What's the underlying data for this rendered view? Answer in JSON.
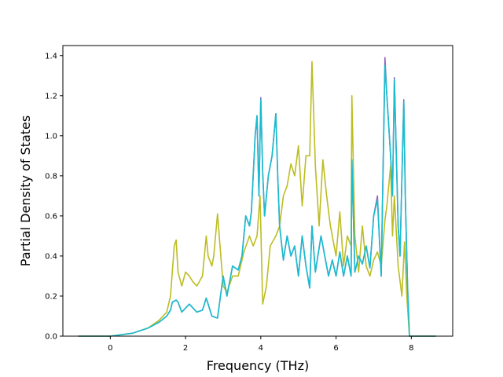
{
  "chart_data": {
    "type": "line",
    "title": "",
    "xlabel": "Frequency (THz)",
    "ylabel": "Partial Density of States",
    "xlim": [
      -1.26,
      9.1
    ],
    "ylim": [
      0,
      1.45
    ],
    "xticks": [
      0,
      2,
      4,
      6,
      8
    ],
    "yticks": [
      0.0,
      0.2,
      0.4,
      0.6,
      0.8,
      1.0,
      1.2,
      1.4
    ],
    "xtick_labels": [
      "0",
      "2",
      "4",
      "6",
      "8"
    ],
    "ytick_labels": [
      "0.0",
      "0.2",
      "0.4",
      "0.6",
      "0.8",
      "1.0",
      "1.2",
      "1.4"
    ],
    "grid": false,
    "legend": "none",
    "series": [
      {
        "color": "#9467bd",
        "x": [
          -0.85,
          0.0,
          0.6,
          1.0,
          1.3,
          1.5,
          1.6,
          1.65,
          1.75,
          1.8,
          1.9,
          2.0,
          2.1,
          2.2,
          2.3,
          2.45,
          2.55,
          2.6,
          2.7,
          2.85,
          3.0,
          3.1,
          3.25,
          3.4,
          3.5,
          3.6,
          3.7,
          3.75,
          3.85,
          3.9,
          3.95,
          4.0,
          4.05,
          4.1,
          4.2,
          4.3,
          4.4,
          4.45,
          4.5,
          4.6,
          4.7,
          4.8,
          4.9,
          5.0,
          5.1,
          5.2,
          5.3,
          5.36,
          5.45,
          5.6,
          5.7,
          5.8,
          5.9,
          6.0,
          6.1,
          6.2,
          6.3,
          6.4,
          6.42,
          6.5,
          6.6,
          6.7,
          6.8,
          6.9,
          7.0,
          7.1,
          7.2,
          7.3,
          7.35,
          7.45,
          7.5,
          7.55,
          7.65,
          7.7,
          7.8,
          7.84,
          7.9,
          7.95,
          8.0,
          8.65
        ],
        "y": [
          0,
          0.0,
          0.015,
          0.04,
          0.07,
          0.1,
          0.13,
          0.17,
          0.18,
          0.17,
          0.12,
          0.14,
          0.16,
          0.14,
          0.12,
          0.13,
          0.19,
          0.16,
          0.1,
          0.09,
          0.3,
          0.2,
          0.35,
          0.33,
          0.4,
          0.6,
          0.55,
          0.62,
          1.0,
          1.1,
          0.7,
          1.19,
          0.82,
          0.6,
          0.8,
          0.9,
          1.11,
          0.8,
          0.55,
          0.38,
          0.5,
          0.4,
          0.45,
          0.3,
          0.5,
          0.35,
          0.24,
          0.55,
          0.32,
          0.5,
          0.4,
          0.3,
          0.38,
          0.3,
          0.42,
          0.3,
          0.4,
          0.3,
          0.88,
          0.32,
          0.4,
          0.36,
          0.45,
          0.34,
          0.6,
          0.7,
          0.3,
          1.39,
          1.2,
          0.9,
          0.7,
          1.29,
          0.55,
          0.4,
          1.18,
          0.7,
          0.25,
          0.0,
          0.0,
          0.0
        ]
      },
      {
        "color": "#bcbd22",
        "x": [
          -0.85,
          0.0,
          0.6,
          1.0,
          1.3,
          1.5,
          1.6,
          1.7,
          1.75,
          1.8,
          1.9,
          2.0,
          2.1,
          2.2,
          2.3,
          2.45,
          2.55,
          2.6,
          2.7,
          2.75,
          2.85,
          3.0,
          3.1,
          3.25,
          3.4,
          3.55,
          3.7,
          3.8,
          3.9,
          3.98,
          4.05,
          4.15,
          4.25,
          4.4,
          4.5,
          4.6,
          4.7,
          4.8,
          4.9,
          5.0,
          5.1,
          5.2,
          5.3,
          5.36,
          5.45,
          5.55,
          5.65,
          5.75,
          5.85,
          6.0,
          6.1,
          6.2,
          6.3,
          6.4,
          6.42,
          6.5,
          6.6,
          6.7,
          6.8,
          6.9,
          7.0,
          7.1,
          7.2,
          7.3,
          7.35,
          7.45,
          7.5,
          7.55,
          7.65,
          7.75,
          7.82,
          7.88,
          7.95,
          8.0,
          8.65
        ],
        "y": [
          0,
          0.0,
          0.015,
          0.04,
          0.08,
          0.12,
          0.2,
          0.45,
          0.48,
          0.32,
          0.25,
          0.32,
          0.3,
          0.27,
          0.25,
          0.3,
          0.5,
          0.4,
          0.35,
          0.4,
          0.61,
          0.25,
          0.22,
          0.3,
          0.3,
          0.42,
          0.5,
          0.45,
          0.5,
          0.7,
          0.16,
          0.25,
          0.45,
          0.5,
          0.55,
          0.7,
          0.75,
          0.86,
          0.8,
          0.95,
          0.65,
          0.9,
          0.9,
          1.37,
          0.85,
          0.55,
          0.88,
          0.7,
          0.55,
          0.4,
          0.62,
          0.35,
          0.5,
          0.45,
          1.2,
          0.5,
          0.32,
          0.55,
          0.35,
          0.3,
          0.38,
          0.42,
          0.35,
          0.58,
          0.65,
          0.85,
          0.5,
          0.7,
          0.35,
          0.2,
          0.47,
          0.2,
          0.0,
          0.0,
          0.0
        ]
      },
      {
        "color": "#17becf",
        "x": [
          -0.85,
          0.0,
          0.6,
          1.0,
          1.3,
          1.5,
          1.6,
          1.65,
          1.75,
          1.8,
          1.9,
          2.0,
          2.1,
          2.2,
          2.3,
          2.45,
          2.55,
          2.6,
          2.7,
          2.85,
          3.0,
          3.1,
          3.25,
          3.4,
          3.5,
          3.6,
          3.7,
          3.75,
          3.85,
          3.9,
          3.95,
          4.0,
          4.05,
          4.1,
          4.2,
          4.3,
          4.4,
          4.45,
          4.5,
          4.6,
          4.7,
          4.8,
          4.9,
          5.0,
          5.1,
          5.2,
          5.3,
          5.36,
          5.45,
          5.6,
          5.7,
          5.8,
          5.9,
          6.0,
          6.1,
          6.2,
          6.3,
          6.4,
          6.42,
          6.5,
          6.6,
          6.7,
          6.8,
          6.9,
          7.0,
          7.1,
          7.2,
          7.3,
          7.35,
          7.45,
          7.5,
          7.55,
          7.65,
          7.7,
          7.8,
          7.84,
          7.9,
          7.95,
          8.0,
          8.65
        ],
        "y": [
          0,
          0.0,
          0.015,
          0.04,
          0.07,
          0.1,
          0.13,
          0.17,
          0.18,
          0.17,
          0.12,
          0.14,
          0.16,
          0.14,
          0.12,
          0.13,
          0.19,
          0.16,
          0.1,
          0.09,
          0.3,
          0.2,
          0.35,
          0.33,
          0.4,
          0.6,
          0.55,
          0.62,
          1.0,
          1.1,
          0.7,
          1.18,
          0.82,
          0.6,
          0.8,
          0.9,
          1.11,
          0.8,
          0.55,
          0.38,
          0.5,
          0.4,
          0.45,
          0.3,
          0.5,
          0.35,
          0.24,
          0.55,
          0.32,
          0.5,
          0.4,
          0.3,
          0.38,
          0.3,
          0.42,
          0.3,
          0.4,
          0.3,
          0.88,
          0.32,
          0.4,
          0.36,
          0.45,
          0.34,
          0.6,
          0.68,
          0.3,
          1.35,
          1.2,
          0.9,
          0.7,
          1.28,
          0.55,
          0.4,
          1.17,
          0.7,
          0.25,
          0.0,
          0.0,
          0.0
        ]
      }
    ]
  }
}
